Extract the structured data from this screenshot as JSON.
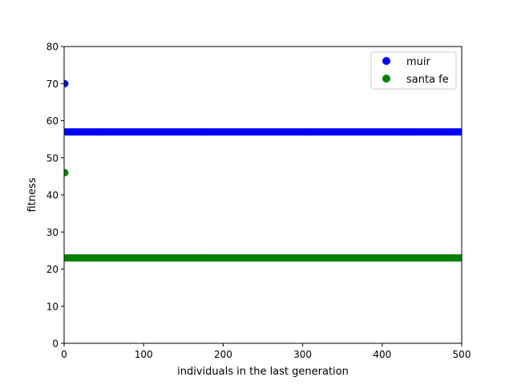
{
  "chart_data": {
    "type": "scatter",
    "title": "",
    "xlabel": "individuals in the last generation",
    "ylabel": "fitness",
    "xlim": [
      0,
      500
    ],
    "ylim": [
      0,
      80
    ],
    "xticks": [
      0,
      100,
      200,
      300,
      400,
      500
    ],
    "yticks": [
      0,
      10,
      20,
      30,
      40,
      50,
      60,
      70,
      80
    ],
    "grid": false,
    "legend_position": "top-right",
    "series": [
      {
        "name": "muir",
        "color": "#0000ff",
        "points": [
          [
            1,
            70
          ]
        ],
        "constant_run": {
          "x_from": 2,
          "x_to": 500,
          "y": 57
        }
      },
      {
        "name": "santa fe",
        "color": "#008000",
        "points": [
          [
            1,
            46
          ]
        ],
        "constant_run": {
          "x_from": 2,
          "x_to": 500,
          "y": 23
        }
      }
    ]
  }
}
